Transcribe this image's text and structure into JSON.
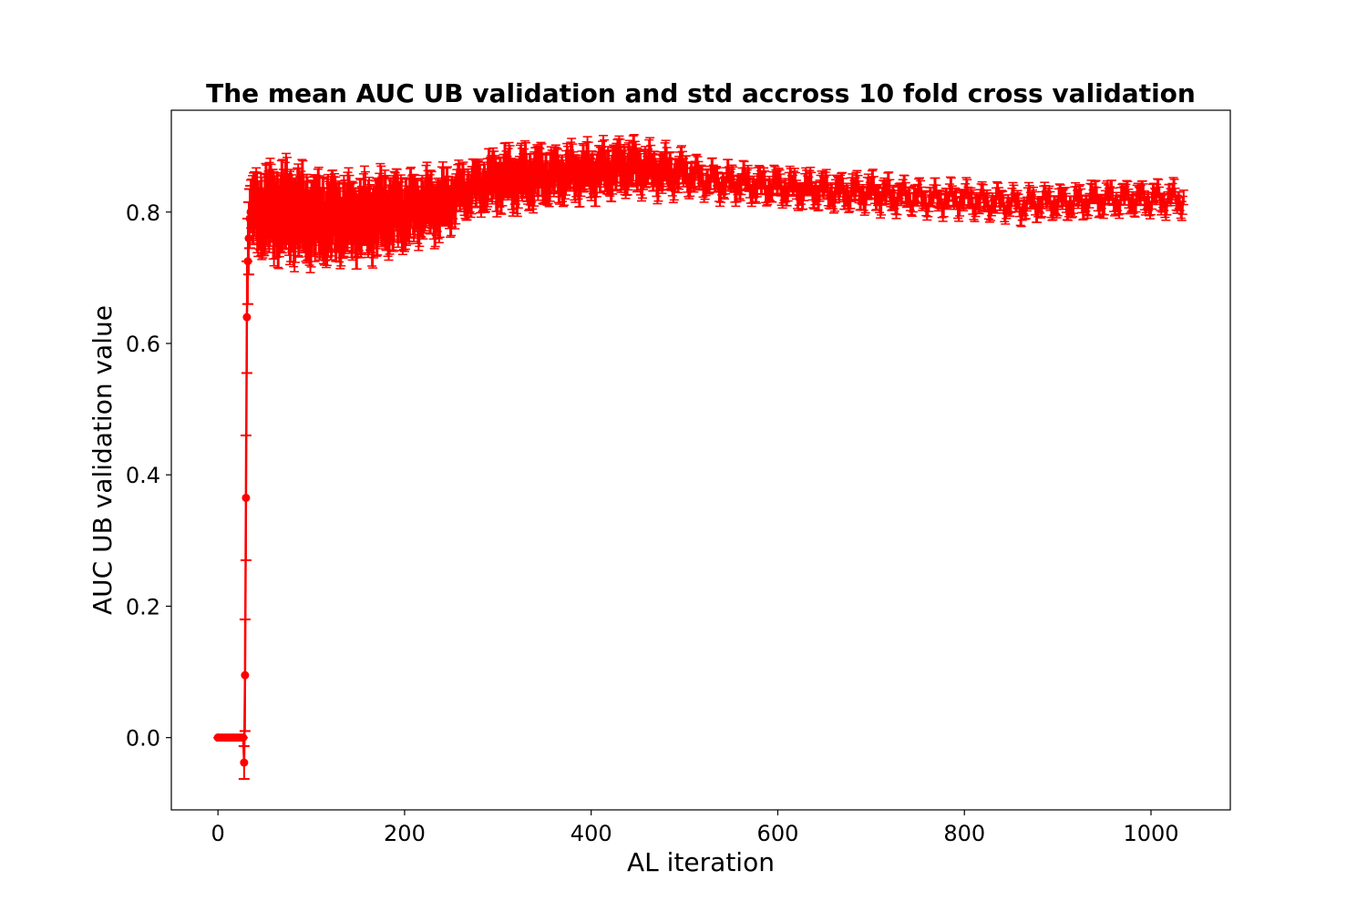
{
  "chart_data": {
    "type": "line",
    "title": "The mean AUC UB validation and std accross 10 fold cross validation",
    "xlabel": "AL iteration",
    "ylabel": "AUC UB validation value",
    "xlim": [
      -50,
      1085
    ],
    "ylim": [
      -0.11,
      0.955
    ],
    "xticks": [
      0,
      200,
      400,
      600,
      800,
      1000
    ],
    "yticks": [
      0.0,
      0.2,
      0.4,
      0.6,
      0.8
    ],
    "xtick_labels": [
      "0",
      "200",
      "400",
      "600",
      "800",
      "1000"
    ],
    "ytick_labels": [
      "0.0",
      "0.2",
      "0.4",
      "0.6",
      "0.8"
    ],
    "grid": false,
    "legend": "none",
    "color": "#ff0000",
    "series": [
      {
        "style": "errorbar",
        "x_range": [
          0,
          1035
        ],
        "x": [
          0,
          27,
          28,
          29,
          30,
          31,
          32,
          33,
          34,
          35,
          40,
          50,
          60,
          80,
          100,
          120,
          140,
          160,
          180,
          200,
          220,
          240,
          260,
          280,
          300,
          320,
          340,
          360,
          380,
          400,
          420,
          440,
          460,
          480,
          500,
          520,
          540,
          560,
          580,
          600,
          620,
          640,
          660,
          680,
          700,
          720,
          740,
          760,
          780,
          800,
          820,
          840,
          860,
          880,
          900,
          920,
          940,
          960,
          980,
          1000,
          1020,
          1035
        ],
        "mean": [
          0.0,
          0.0,
          -0.038,
          0.095,
          0.365,
          0.64,
          0.725,
          0.76,
          0.79,
          0.8,
          0.8,
          0.8,
          0.8,
          0.8,
          0.79,
          0.79,
          0.79,
          0.79,
          0.8,
          0.8,
          0.81,
          0.81,
          0.83,
          0.84,
          0.85,
          0.85,
          0.855,
          0.855,
          0.86,
          0.86,
          0.865,
          0.87,
          0.865,
          0.86,
          0.86,
          0.85,
          0.845,
          0.845,
          0.84,
          0.84,
          0.835,
          0.835,
          0.83,
          0.83,
          0.83,
          0.825,
          0.825,
          0.82,
          0.82,
          0.82,
          0.815,
          0.815,
          0.81,
          0.815,
          0.815,
          0.815,
          0.82,
          0.82,
          0.82,
          0.82,
          0.82,
          0.82
        ],
        "std": [
          0.0,
          0.0,
          0.025,
          0.085,
          0.095,
          0.085,
          0.065,
          0.055,
          0.045,
          0.04,
          0.05,
          0.055,
          0.06,
          0.06,
          0.055,
          0.055,
          0.05,
          0.05,
          0.05,
          0.045,
          0.04,
          0.04,
          0.03,
          0.03,
          0.035,
          0.035,
          0.035,
          0.03,
          0.03,
          0.03,
          0.03,
          0.03,
          0.025,
          0.025,
          0.02,
          0.015,
          0.015,
          0.015,
          0.015,
          0.015,
          0.015,
          0.015,
          0.015,
          0.015,
          0.015,
          0.015,
          0.012,
          0.012,
          0.012,
          0.012,
          0.012,
          0.012,
          0.012,
          0.012,
          0.012,
          0.012,
          0.012,
          0.012,
          0.012,
          0.012,
          0.012,
          0.012
        ]
      }
    ]
  }
}
